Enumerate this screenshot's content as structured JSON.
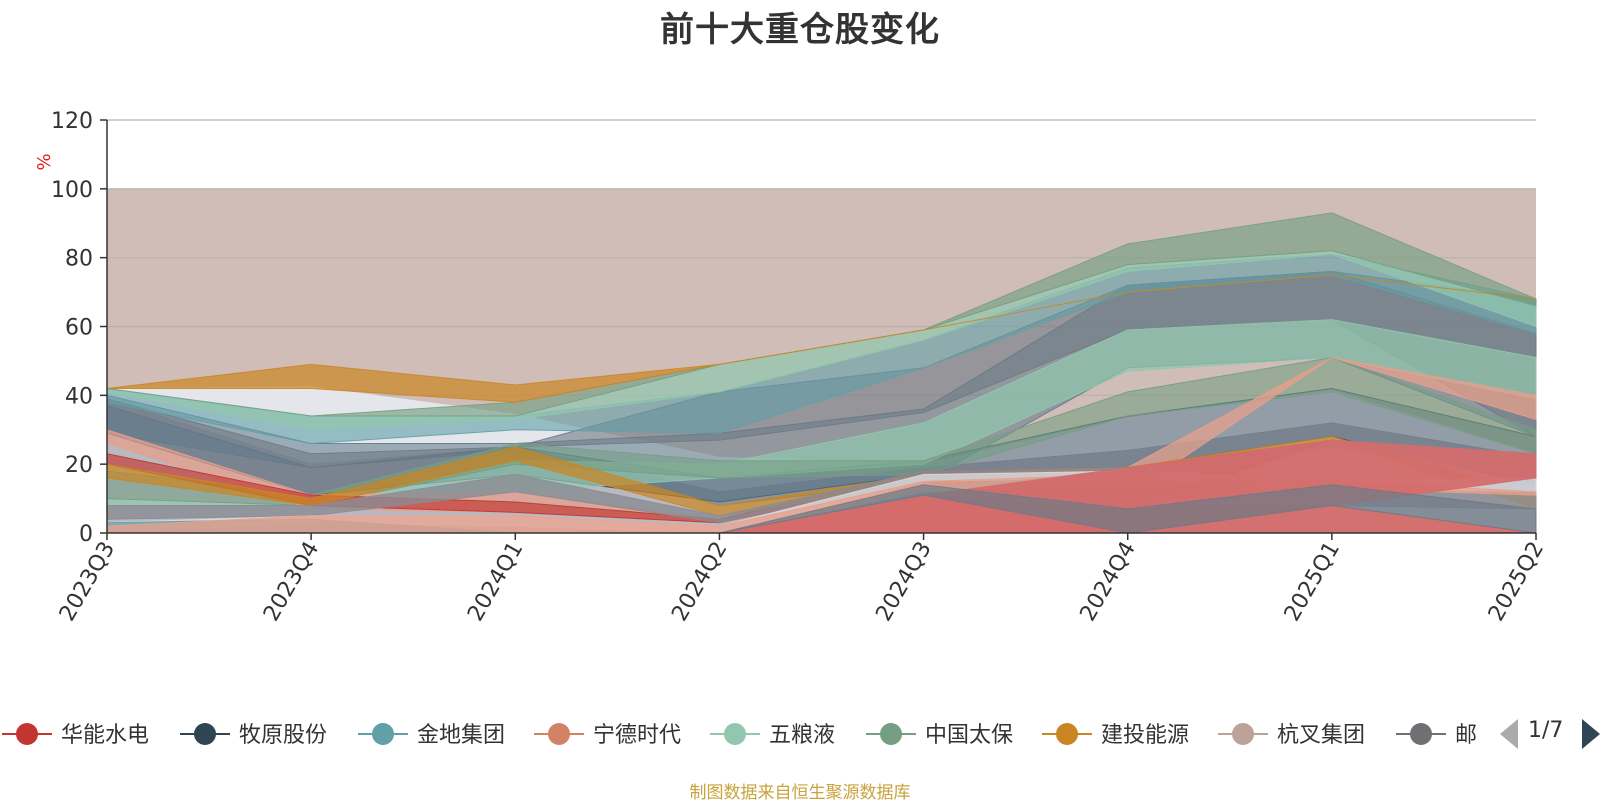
{
  "chart_data": {
    "type": "area",
    "title": "前十大重仓股变化",
    "ylabel": "%",
    "ylim": [
      0,
      120
    ],
    "yticks": [
      0,
      20,
      40,
      60,
      80,
      100,
      120
    ],
    "categories": [
      "2023Q3",
      "2023Q4",
      "2024Q1",
      "2024Q2",
      "2024Q3",
      "2024Q4",
      "2025Q1",
      "2025Q2"
    ],
    "background_band": {
      "from": 0,
      "to": 100,
      "color": "#d1bdb7"
    },
    "grid": true,
    "legend": {
      "placement": "bottom",
      "page_indicator": "1/7",
      "items": [
        {
          "name": "华能水电",
          "color": "#c23531"
        },
        {
          "name": "牧原股份",
          "color": "#2f4554"
        },
        {
          "name": "金地集团",
          "color": "#61a0a8"
        },
        {
          "name": "宁德时代",
          "color": "#d48265"
        },
        {
          "name": "五粮液",
          "color": "#91c7ae"
        },
        {
          "name": "中国太保",
          "color": "#749f83"
        },
        {
          "name": "建投能源",
          "color": "#ca8622"
        },
        {
          "name": "杭叉集团",
          "color": "#bda29a"
        },
        {
          "name": "邮",
          "color": "#6e7074"
        }
      ]
    },
    "areas": [
      {
        "color": "#e6e8ee",
        "opacity": 0.95,
        "upper": [
          42,
          42.5,
          34.5,
          22,
          20,
          33.5,
          41.5,
          23
        ],
        "lower": [
          0,
          0,
          0,
          0,
          0,
          0,
          0,
          0
        ]
      },
      {
        "color": "#aeaeb6",
        "opacity": 0.8,
        "upper": [
          39,
          20,
          25,
          12,
          19,
          24,
          32,
          22
        ],
        "lower": [
          0,
          0,
          0,
          0,
          0,
          0,
          0,
          0
        ]
      },
      {
        "color": "#2f4554",
        "opacity": 0.45,
        "upper": [
          37,
          19,
          25,
          16,
          21,
          34,
          42,
          28
        ],
        "lower": [
          29,
          11,
          17,
          9,
          17,
          19,
          28,
          14
        ]
      },
      {
        "color": "#5f7a8a",
        "opacity": 0.55,
        "upper": [
          40,
          26,
          26,
          29,
          36,
          72,
          76,
          68
        ],
        "lower": [
          29,
          19,
          24,
          8,
          15,
          48,
          51,
          28
        ]
      },
      {
        "color": "#6e7a86",
        "opacity": 0.6,
        "upper": [
          39,
          23,
          25,
          41,
          48,
          72,
          76,
          58
        ],
        "lower": [
          37,
          19,
          25,
          27,
          35,
          59,
          62,
          28
        ]
      },
      {
        "color": "#61a0a8",
        "opacity": 0.6,
        "upper": [
          42,
          34,
          34,
          41,
          56,
          77,
          81,
          68
        ],
        "lower": [
          38,
          26,
          30,
          29,
          48,
          70,
          75,
          58
        ]
      },
      {
        "color": "#91c7ae",
        "opacity": 0.75,
        "upper": [
          42,
          34,
          34,
          49,
          59,
          78,
          82,
          66
        ],
        "lower": [
          41,
          30,
          33,
          41,
          56,
          76,
          81,
          60
        ]
      },
      {
        "color": "#749f83",
        "opacity": 0.65,
        "upper": [
          42,
          34,
          38,
          49,
          59,
          84,
          93,
          68
        ],
        "lower": [
          42,
          34,
          34,
          49,
          59,
          78,
          82,
          66
        ]
      },
      {
        "color": "#ca8622",
        "opacity": 0.7,
        "upper": [
          42,
          49,
          43,
          49,
          59,
          70,
          75,
          68
        ],
        "lower": [
          42,
          42,
          38,
          49,
          59,
          70,
          75,
          68
        ]
      },
      {
        "color": "#91c7ae",
        "opacity": 0.7,
        "upper": [
          10,
          8,
          21,
          20,
          32,
          59,
          62,
          51
        ],
        "lower": [
          8,
          8,
          12,
          16,
          20,
          47,
          51,
          39
        ]
      },
      {
        "color": "#749f83",
        "opacity": 0.6,
        "upper": [
          18,
          11,
          26,
          21,
          21,
          41,
          51,
          30
        ],
        "lower": [
          10,
          8,
          20,
          16,
          17,
          34,
          41,
          23
        ]
      },
      {
        "color": "#e6a08c",
        "opacity": 0.75,
        "upper": [
          30,
          11,
          12,
          4,
          17,
          19,
          51,
          40
        ],
        "lower": [
          26,
          7,
          6,
          3,
          14,
          11,
          51,
          33
        ]
      },
      {
        "color": "#c23531",
        "opacity": 0.65,
        "upper": [
          23,
          11,
          9,
          4,
          18,
          19,
          27,
          16
        ],
        "lower": [
          20,
          8,
          6,
          3,
          15,
          7,
          27,
          16
        ]
      },
      {
        "color": "#ca8622",
        "opacity": 0.7,
        "upper": [
          20,
          10,
          25,
          8,
          17,
          19,
          28,
          11
        ],
        "lower": [
          16,
          8,
          21,
          5,
          15,
          18,
          27,
          7
        ]
      },
      {
        "color": "#8a8c94",
        "opacity": 0.8,
        "upper": [
          8,
          8,
          17,
          5,
          18,
          19,
          15,
          15
        ],
        "lower": [
          4,
          5,
          12,
          3,
          15,
          0,
          8,
          7
        ]
      },
      {
        "color": "#d9d9e0",
        "opacity": 0.8,
        "upper": [
          3,
          5,
          5,
          2,
          17,
          18,
          15,
          16
        ],
        "lower": [
          0,
          3,
          2,
          0,
          15,
          16,
          13,
          12
        ]
      },
      {
        "color": "#61a0a8",
        "opacity": 0.75,
        "upper": [
          3,
          4,
          0,
          0,
          13,
          18,
          27,
          23
        ],
        "lower": [
          0,
          0,
          0,
          0,
          11,
          16,
          25,
          16
        ]
      },
      {
        "color": "#e6a08c",
        "opacity": 0.8,
        "upper": [
          2,
          5,
          5,
          2,
          15,
          17,
          15,
          12
        ],
        "lower": [
          0,
          0,
          0,
          0,
          12,
          15,
          13,
          11
        ]
      },
      {
        "color": "#d46b6b",
        "opacity": 0.95,
        "upper": [
          0,
          0,
          0,
          0,
          11,
          19,
          27,
          23
        ],
        "lower": [
          0,
          0,
          0,
          0,
          0,
          0,
          8,
          16
        ]
      },
      {
        "color": "#d46b6b",
        "opacity": 0.95,
        "upper": [
          0,
          0,
          0,
          0,
          11,
          7,
          8,
          0
        ],
        "lower": [
          0,
          0,
          0,
          0,
          0,
          0,
          0,
          0
        ]
      },
      {
        "color": "#6e7a86",
        "opacity": 0.7,
        "upper": [
          0,
          0,
          0,
          0,
          14,
          7,
          14,
          7
        ],
        "lower": [
          0,
          0,
          0,
          0,
          11,
          0,
          8,
          0
        ]
      }
    ]
  },
  "source_note": "制图数据来自恒生聚源数据库"
}
